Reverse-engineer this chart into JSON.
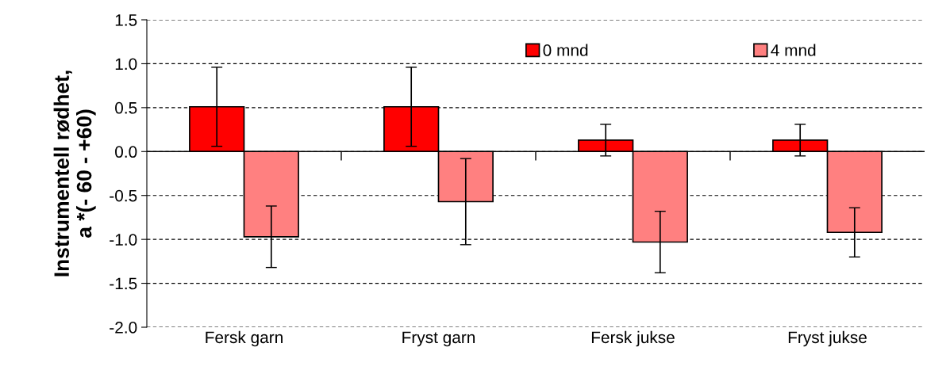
{
  "chart_data": {
    "type": "bar",
    "ylabel": "Instrumentell rødhet,\na *(- 60 - +60)",
    "categories": [
      "Fersk garn",
      "Fryst garn",
      "Fersk jukse",
      "Fryst jukse"
    ],
    "series": [
      {
        "name": "0 mnd",
        "color": "#ff0000",
        "values": [
          0.51,
          0.51,
          0.13,
          0.13
        ],
        "errors": [
          0.45,
          0.45,
          0.18,
          0.18
        ]
      },
      {
        "name": "4 mnd",
        "color": "#ff8080",
        "values": [
          -0.97,
          -0.57,
          -1.03,
          -0.92
        ],
        "errors": [
          0.35,
          0.49,
          0.35,
          0.28
        ]
      }
    ],
    "ylim": [
      -2.0,
      1.5
    ],
    "yticks": [
      {
        "value": -2.0,
        "label": "-2.0"
      },
      {
        "value": -1.5,
        "label": "-1.5"
      },
      {
        "value": -1.0,
        "label": "-1.0"
      },
      {
        "value": -0.5,
        "label": "-0.5"
      },
      {
        "value": 0.0,
        "label": "0.0"
      },
      {
        "value": 0.5,
        "label": "0.5"
      },
      {
        "value": 1.0,
        "label": "1.0"
      },
      {
        "value": 1.5,
        "label": "1.5"
      }
    ],
    "grid": "y",
    "legend": "top right"
  }
}
